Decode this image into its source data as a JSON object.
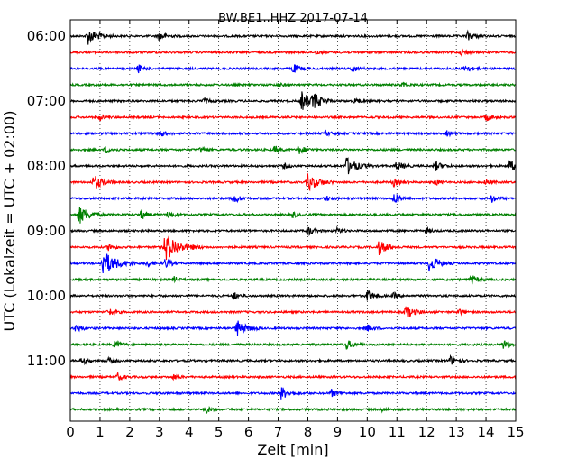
{
  "chart_data": {
    "type": "line",
    "title": "BW.BE1..HHZ 2017-07-14",
    "xlabel": "Zeit  [min]",
    "ylabel": "UTC (Lokalzeit = UTC + 02:00)",
    "xlim": [
      0,
      15
    ],
    "x_ticks": [
      0,
      1,
      2,
      3,
      4,
      5,
      6,
      7,
      8,
      9,
      10,
      11,
      12,
      13,
      14,
      15
    ],
    "x_tick_labels": [
      "0",
      "1",
      "2",
      "3",
      "4",
      "5",
      "6",
      "7",
      "8",
      "9",
      "10",
      "11",
      "12",
      "13",
      "14",
      "15"
    ],
    "y_tick_labels": [
      "06:00",
      "07:00",
      "08:00",
      "09:00",
      "10:00",
      "11:00"
    ],
    "y_tick_rows": [
      0,
      4,
      8,
      12,
      16,
      20
    ],
    "grid": "vertical dotted",
    "trace_colors": [
      "#000000",
      "#ff0000",
      "#0000ff",
      "#008000"
    ],
    "traces": [
      {
        "start": "06:00",
        "events": [
          [
            0.6,
            0.9
          ],
          [
            3.0,
            0.5
          ],
          [
            13.4,
            0.5
          ]
        ]
      },
      {
        "start": "06:15",
        "events": [
          [
            13.2,
            0.4
          ],
          [
            8.3,
            0.2
          ]
        ]
      },
      {
        "start": "06:30",
        "events": [
          [
            2.3,
            0.4
          ],
          [
            7.5,
            0.5
          ],
          [
            9.5,
            0.4
          ],
          [
            13.3,
            0.4
          ]
        ]
      },
      {
        "start": "06:45",
        "events": [
          [
            11.2,
            0.3
          ],
          [
            7.0,
            0.2
          ]
        ]
      },
      {
        "start": "07:00",
        "events": [
          [
            7.8,
            1.0
          ],
          [
            8.2,
            0.7
          ],
          [
            4.5,
            0.3
          ],
          [
            9.6,
            0.3
          ]
        ]
      },
      {
        "start": "07:15",
        "events": [
          [
            1.0,
            0.3
          ],
          [
            14.0,
            0.4
          ]
        ]
      },
      {
        "start": "07:30",
        "events": [
          [
            3.0,
            0.4
          ],
          [
            8.6,
            0.3
          ],
          [
            12.7,
            0.3
          ]
        ]
      },
      {
        "start": "07:45",
        "events": [
          [
            1.2,
            0.4
          ],
          [
            4.4,
            0.3
          ],
          [
            6.9,
            0.4
          ],
          [
            7.7,
            0.5
          ]
        ]
      },
      {
        "start": "08:00",
        "events": [
          [
            9.3,
            1.0
          ],
          [
            11.0,
            0.5
          ],
          [
            12.3,
            0.5
          ],
          [
            14.8,
            0.6
          ],
          [
            7.2,
            0.3
          ]
        ]
      },
      {
        "start": "08:15",
        "events": [
          [
            0.8,
            0.8
          ],
          [
            8.0,
            1.0
          ],
          [
            10.9,
            0.4
          ],
          [
            12.3,
            0.3
          ],
          [
            14.0,
            0.3
          ]
        ]
      },
      {
        "start": "08:30",
        "events": [
          [
            5.5,
            0.5
          ],
          [
            10.9,
            0.6
          ],
          [
            14.2,
            0.4
          ],
          [
            8.6,
            0.3
          ]
        ]
      },
      {
        "start": "08:45",
        "events": [
          [
            0.3,
            1.0
          ],
          [
            2.4,
            0.5
          ],
          [
            3.3,
            0.4
          ],
          [
            7.5,
            0.3
          ]
        ]
      },
      {
        "start": "09:00",
        "events": [
          [
            8.0,
            0.5
          ],
          [
            9.0,
            0.3
          ],
          [
            12.0,
            0.3
          ]
        ]
      },
      {
        "start": "09:15",
        "events": [
          [
            3.2,
            1.6
          ],
          [
            10.4,
            0.8
          ],
          [
            1.3,
            0.4
          ]
        ]
      },
      {
        "start": "09:30",
        "events": [
          [
            1.1,
            1.4
          ],
          [
            12.1,
            0.9
          ],
          [
            3.2,
            0.5
          ],
          [
            2.6,
            0.4
          ]
        ]
      },
      {
        "start": "09:45",
        "events": [
          [
            13.5,
            0.5
          ],
          [
            3.5,
            0.3
          ]
        ]
      },
      {
        "start": "10:00",
        "events": [
          [
            10.0,
            0.6
          ],
          [
            5.5,
            0.4
          ],
          [
            10.9,
            0.3
          ]
        ]
      },
      {
        "start": "10:15",
        "events": [
          [
            11.3,
            0.7
          ],
          [
            1.3,
            0.4
          ],
          [
            13.1,
            0.3
          ]
        ]
      },
      {
        "start": "10:30",
        "events": [
          [
            5.6,
            0.9
          ],
          [
            0.2,
            0.4
          ],
          [
            10.0,
            0.4
          ]
        ]
      },
      {
        "start": "10:45",
        "events": [
          [
            9.3,
            0.5
          ],
          [
            14.6,
            0.5
          ],
          [
            1.5,
            0.4
          ]
        ]
      },
      {
        "start": "11:00",
        "events": [
          [
            0.4,
            0.4
          ],
          [
            12.8,
            0.5
          ],
          [
            1.3,
            0.3
          ]
        ]
      },
      {
        "start": "11:15",
        "events": [
          [
            1.6,
            0.4
          ],
          [
            3.5,
            0.3
          ]
        ]
      },
      {
        "start": "11:30",
        "events": [
          [
            7.1,
            0.7
          ],
          [
            8.8,
            0.4
          ]
        ]
      },
      {
        "start": "11:45",
        "events": [
          [
            4.6,
            0.3
          ],
          [
            10.5,
            0.2
          ]
        ]
      }
    ]
  }
}
